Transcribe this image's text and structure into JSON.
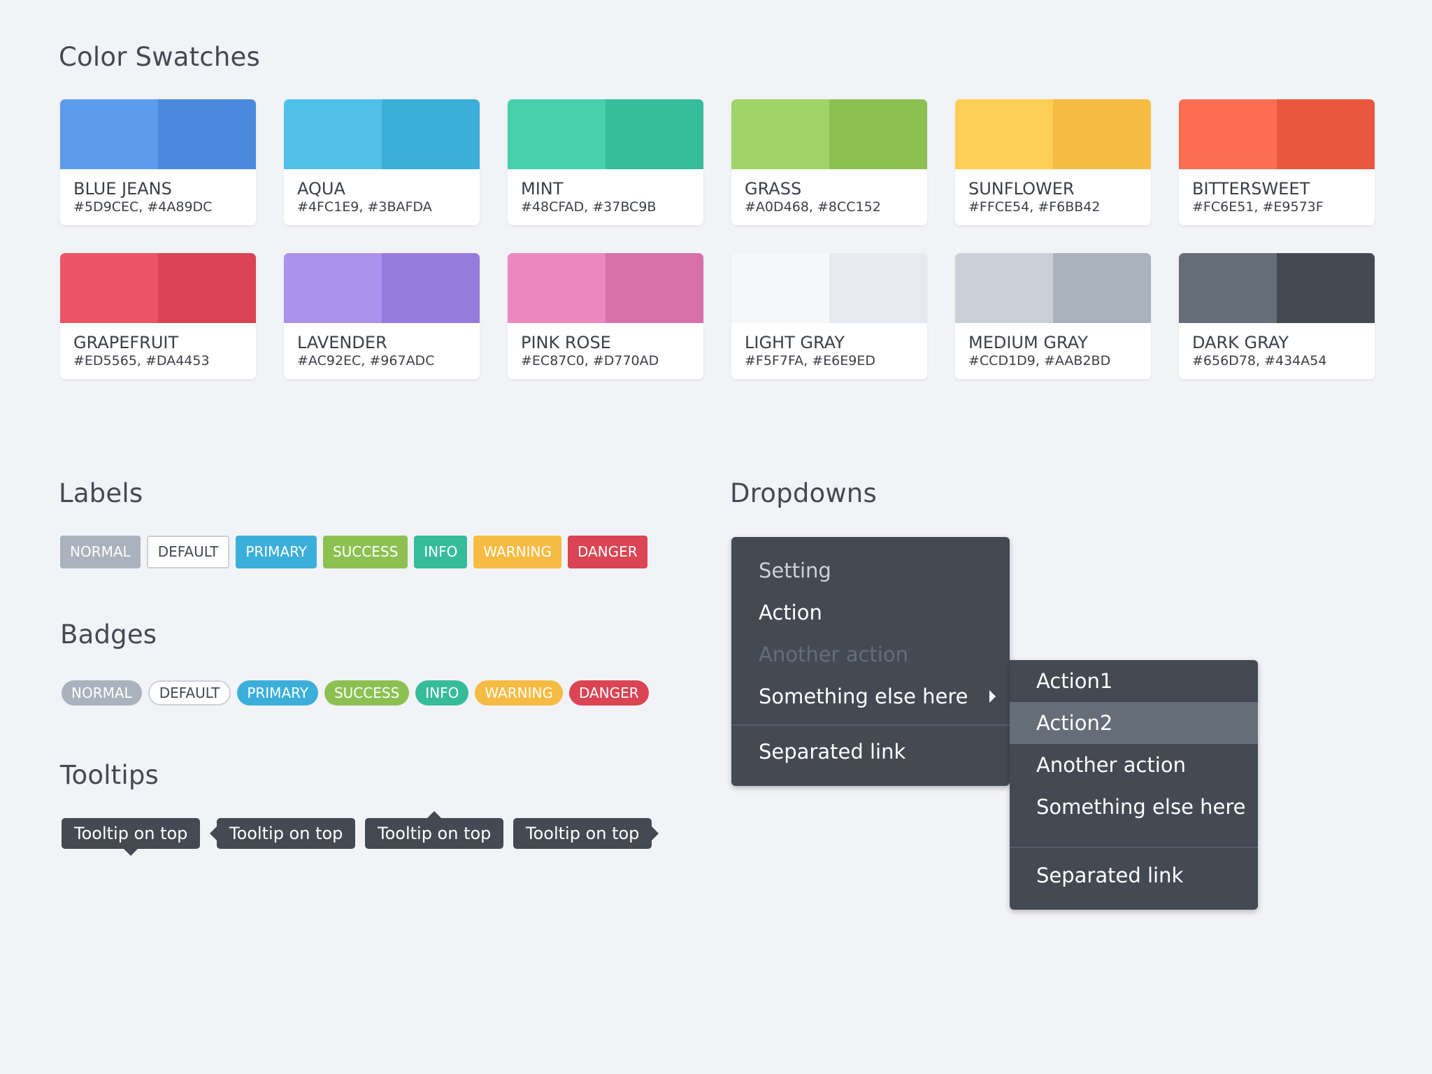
{
  "sections": {
    "swatches_title": "Color Swatches",
    "labels_title": "Labels",
    "badges_title": "Badges",
    "tooltips_title": "Tooltips",
    "dropdowns_title": "Dropdowns"
  },
  "swatches": [
    {
      "name": "BLUE JEANS",
      "hex_text": "#5D9CEC, #4A89DC",
      "light": "#5D9CEC",
      "dark": "#4A89DC"
    },
    {
      "name": "AQUA",
      "hex_text": "#4FC1E9, #3BAFDA",
      "light": "#4FC1E9",
      "dark": "#3BAFDA"
    },
    {
      "name": "MINT",
      "hex_text": "#48CFAD, #37BC9B",
      "light": "#48CFAD",
      "dark": "#37BC9B"
    },
    {
      "name": "GRASS",
      "hex_text": "#A0D468, #8CC152",
      "light": "#A0D468",
      "dark": "#8CC152"
    },
    {
      "name": "SUNFLOWER",
      "hex_text": "#FFCE54, #F6BB42",
      "light": "#FFCE54",
      "dark": "#F6BB42"
    },
    {
      "name": "BITTERSWEET",
      "hex_text": "#FC6E51, #E9573F",
      "light": "#FC6E51",
      "dark": "#E9573F"
    },
    {
      "name": "GRAPEFRUIT",
      "hex_text": "#ED5565, #DA4453",
      "light": "#ED5565",
      "dark": "#DA4453"
    },
    {
      "name": "LAVENDER",
      "hex_text": "#AC92EC, #967ADC",
      "light": "#AC92EC",
      "dark": "#967ADC"
    },
    {
      "name": "PINK ROSE",
      "hex_text": "#EC87C0, #D770AD",
      "light": "#EC87C0",
      "dark": "#D770AD"
    },
    {
      "name": "LIGHT GRAY",
      "hex_text": "#F5F7FA, #E6E9ED",
      "light": "#F5F7FA",
      "dark": "#E6E9ED"
    },
    {
      "name": "MEDIUM GRAY",
      "hex_text": "#CCD1D9, #AAB2BD",
      "light": "#CCD1D9",
      "dark": "#AAB2BD"
    },
    {
      "name": "DARK GRAY",
      "hex_text": "#656D78, #434A54",
      "light": "#656D78",
      "dark": "#434A54"
    }
  ],
  "labels": [
    {
      "text": "NORMAL",
      "color": "#AAB2BD"
    },
    {
      "text": "DEFAULT",
      "color": "#FFFFFF"
    },
    {
      "text": "PRIMARY",
      "color": "#3BAFDA"
    },
    {
      "text": "SUCCESS",
      "color": "#8CC152"
    },
    {
      "text": "INFO",
      "color": "#37BC9B"
    },
    {
      "text": "WARNING",
      "color": "#F6BB42"
    },
    {
      "text": "DANGER",
      "color": "#DA4453"
    }
  ],
  "badges": [
    {
      "text": "NORMAL",
      "color": "#AAB2BD"
    },
    {
      "text": "DEFAULT",
      "color": "#FFFFFF"
    },
    {
      "text": "PRIMARY",
      "color": "#3BAFDA"
    },
    {
      "text": "SUCCESS",
      "color": "#8CC152"
    },
    {
      "text": "INFO",
      "color": "#37BC9B"
    },
    {
      "text": "WARNING",
      "color": "#F6BB42"
    },
    {
      "text": "DANGER",
      "color": "#DA4453"
    }
  ],
  "tooltips": [
    {
      "text": "Tooltip on top"
    },
    {
      "text": "Tooltip on top"
    },
    {
      "text": "Tooltip on top"
    },
    {
      "text": "Tooltip on top"
    }
  ],
  "dropdown_main": {
    "header": "Setting",
    "items": [
      "Action",
      "Another action",
      "Something else here"
    ],
    "separated": "Separated link"
  },
  "dropdown_sub": {
    "items": [
      "Action1",
      "Action2",
      "Another action",
      "Something else here"
    ],
    "separated": "Separated link"
  }
}
